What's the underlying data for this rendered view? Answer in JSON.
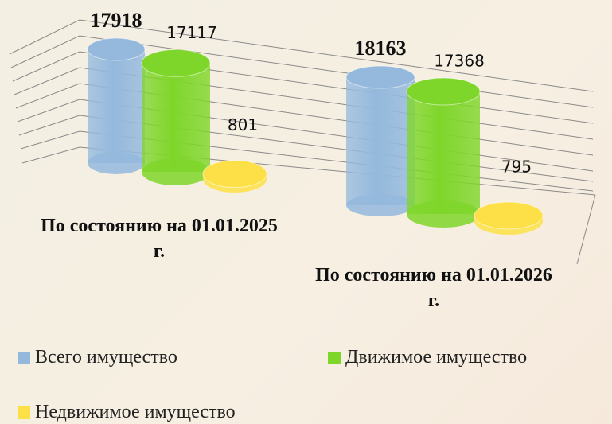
{
  "chart_data": {
    "type": "cylinder_bar",
    "categories": [
      "По состоянию на 01.01.2025 г.",
      "По состоянию на 01.01.2026 г."
    ],
    "series": [
      {
        "name": "Всего имущество",
        "color": "#94b9dd",
        "values": [
          17918,
          18163
        ]
      },
      {
        "name": "Движимое имущество",
        "color": "#7fd62a",
        "values": [
          17117,
          17368
        ]
      },
      {
        "name": "Недвижимое имущество",
        "color": "#fde047",
        "values": [
          801,
          795
        ]
      }
    ],
    "legend": "bottom"
  }
}
